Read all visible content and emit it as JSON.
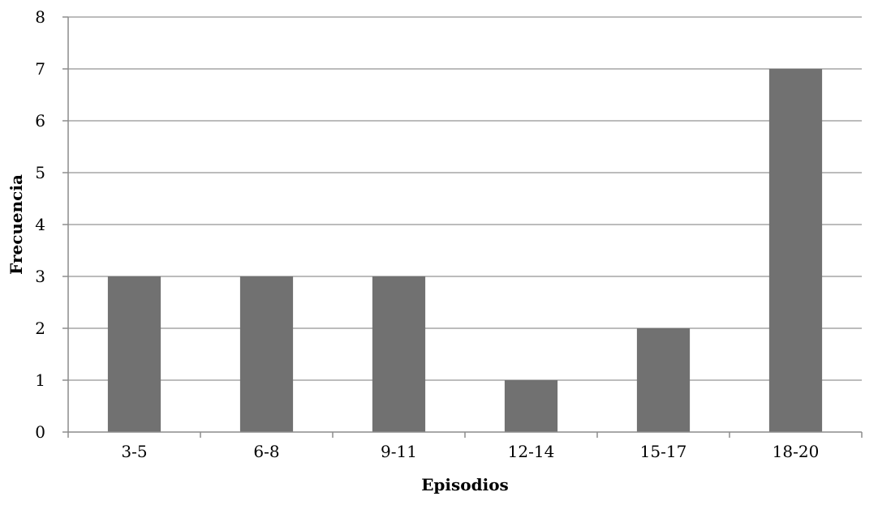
{
  "chart_data": {
    "type": "bar",
    "title": "",
    "xlabel": "Episodios",
    "ylabel": "Frecuencia",
    "categories": [
      "3-5",
      "6-8",
      "9-11",
      "12-14",
      "15-17",
      "18-20"
    ],
    "values": [
      3,
      3,
      3,
      1,
      2,
      7
    ],
    "ylim": [
      0,
      8
    ],
    "yticks": [
      "0",
      "1",
      "2",
      "3",
      "4",
      "5",
      "6",
      "7",
      "8"
    ],
    "grid": true,
    "legend": "none",
    "bar_color": "#717171"
  }
}
